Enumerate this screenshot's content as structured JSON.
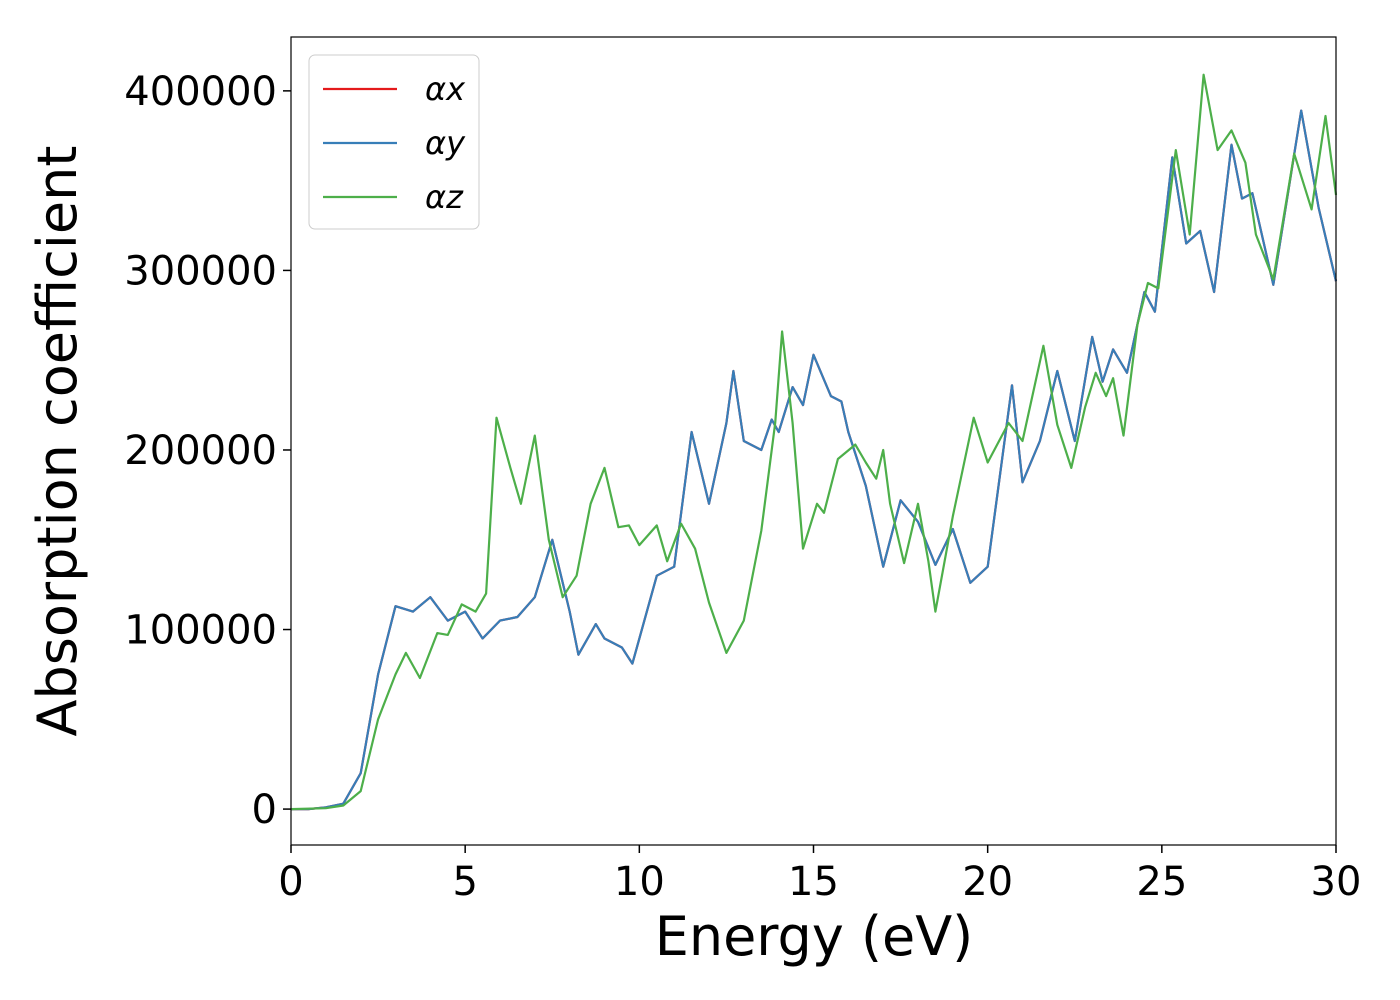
{
  "chart_data": {
    "type": "line",
    "xlabel": "Energy (eV)",
    "ylabel": "Absorption coefficient",
    "xlim": [
      0,
      30
    ],
    "ylim": [
      -20000,
      430000
    ],
    "xticks": [
      0,
      5,
      10,
      15,
      20,
      25,
      30
    ],
    "yticks": [
      0,
      100000,
      200000,
      300000,
      400000
    ],
    "legend": "upper left",
    "grid": false,
    "series": [
      {
        "name": "αx",
        "color": "#e41a1c",
        "x": [
          0,
          0.5,
          1,
          1.5,
          2,
          2.5,
          3,
          3.5,
          4,
          4.5,
          5,
          5.5,
          6,
          6.5,
          7,
          7.5,
          8,
          8.25,
          8.75,
          9,
          9.5,
          9.8,
          10.5,
          11,
          11.5,
          12,
          12.5,
          12.7,
          13,
          13.5,
          13.8,
          14,
          14.4,
          14.7,
          15,
          15.5,
          15.8,
          16,
          16.5,
          17,
          17.5,
          18,
          18.5,
          19,
          19.5,
          20,
          20.7,
          21,
          21.5,
          22,
          22.5,
          23,
          23.3,
          23.6,
          24,
          24.5,
          24.8,
          25.3,
          25.7,
          26.1,
          26.5,
          27,
          27.3,
          27.6,
          28.2,
          29,
          29.5,
          30
        ],
        "values": [
          0,
          0,
          1000,
          3000,
          20000,
          75000,
          113000,
          110000,
          118000,
          105000,
          110000,
          95000,
          105000,
          107000,
          118000,
          150000,
          110000,
          86000,
          103000,
          95000,
          90000,
          81000,
          130000,
          135000,
          210000,
          170000,
          215000,
          244000,
          205000,
          200000,
          217000,
          210000,
          235000,
          225000,
          253000,
          230000,
          227000,
          210000,
          180000,
          135000,
          172000,
          160000,
          136000,
          156000,
          126000,
          135000,
          236000,
          182000,
          205000,
          244000,
          205000,
          263000,
          238000,
          256000,
          243000,
          288000,
          277000,
          363000,
          315000,
          322000,
          288000,
          370000,
          340000,
          343000,
          292000,
          389000,
          335000,
          294000
        ]
      },
      {
        "name": "αy",
        "color": "#377eb8",
        "x": [
          0,
          0.5,
          1,
          1.5,
          2,
          2.5,
          3,
          3.5,
          4,
          4.5,
          5,
          5.5,
          6,
          6.5,
          7,
          7.5,
          8,
          8.25,
          8.75,
          9,
          9.5,
          9.8,
          10.5,
          11,
          11.5,
          12,
          12.5,
          12.7,
          13,
          13.5,
          13.8,
          14,
          14.4,
          14.7,
          15,
          15.5,
          15.8,
          16,
          16.5,
          17,
          17.5,
          18,
          18.5,
          19,
          19.5,
          20,
          20.7,
          21,
          21.5,
          22,
          22.5,
          23,
          23.3,
          23.6,
          24,
          24.5,
          24.8,
          25.3,
          25.7,
          26.1,
          26.5,
          27,
          27.3,
          27.6,
          28.2,
          29,
          29.5,
          30
        ],
        "values": [
          0,
          0,
          1000,
          3000,
          20000,
          75000,
          113000,
          110000,
          118000,
          105000,
          110000,
          95000,
          105000,
          107000,
          118000,
          150000,
          110000,
          86000,
          103000,
          95000,
          90000,
          81000,
          130000,
          135000,
          210000,
          170000,
          215000,
          244000,
          205000,
          200000,
          217000,
          210000,
          235000,
          225000,
          253000,
          230000,
          227000,
          210000,
          180000,
          135000,
          172000,
          160000,
          136000,
          156000,
          126000,
          135000,
          236000,
          182000,
          205000,
          244000,
          205000,
          263000,
          238000,
          256000,
          243000,
          288000,
          277000,
          363000,
          315000,
          322000,
          288000,
          370000,
          340000,
          343000,
          292000,
          389000,
          335000,
          294000
        ]
      },
      {
        "name": "αz",
        "color": "#4daf4a",
        "x": [
          0,
          1,
          1.5,
          2,
          2.5,
          3,
          3.3,
          3.7,
          4.2,
          4.5,
          4.9,
          5.3,
          5.6,
          5.9,
          6.3,
          6.6,
          7,
          7.4,
          7.8,
          8.2,
          8.6,
          9,
          9.4,
          9.7,
          10,
          10.5,
          10.8,
          11.2,
          11.6,
          12,
          12.5,
          13,
          13.5,
          13.9,
          14.1,
          14.4,
          14.7,
          15.1,
          15.3,
          15.7,
          16.2,
          16.5,
          16.8,
          17,
          17.2,
          17.6,
          18,
          18.3,
          18.5,
          19,
          19.6,
          20,
          20.6,
          21,
          21.6,
          22,
          22.4,
          22.8,
          23.1,
          23.4,
          23.6,
          23.9,
          24.3,
          24.6,
          24.9,
          25.4,
          25.8,
          26.2,
          26.6,
          27,
          27.4,
          27.7,
          28.2,
          28.8,
          29.3,
          29.7,
          30
        ],
        "values": [
          0,
          500,
          2000,
          10000,
          50000,
          75000,
          87000,
          73000,
          98000,
          97000,
          114000,
          110000,
          120000,
          218000,
          190000,
          170000,
          208000,
          150000,
          118000,
          130000,
          170000,
          190000,
          157000,
          158000,
          147000,
          158000,
          138000,
          159000,
          145000,
          115000,
          87000,
          105000,
          155000,
          215000,
          266000,
          215000,
          145000,
          170000,
          165000,
          195000,
          203000,
          193000,
          184000,
          200000,
          170000,
          137000,
          170000,
          138000,
          110000,
          163000,
          218000,
          193000,
          215000,
          205000,
          258000,
          214000,
          190000,
          224000,
          243000,
          230000,
          240000,
          208000,
          270000,
          293000,
          290000,
          367000,
          320000,
          409000,
          367000,
          378000,
          360000,
          320000,
          295000,
          365000,
          334000,
          386000,
          342000
        ]
      }
    ]
  }
}
